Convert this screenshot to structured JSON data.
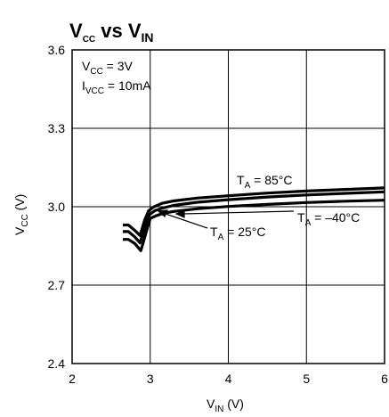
{
  "chart_data": {
    "type": "line",
    "title": {
      "main": "V",
      "main_sub": "CC",
      "mid": " vs ",
      "tail": "V",
      "tail_sub": "IN"
    },
    "xlabel": {
      "main": "V",
      "sub": "IN",
      "unit": " (V)"
    },
    "ylabel": {
      "main": "V",
      "sub": "CC",
      "unit": " (V)"
    },
    "xlim": [
      2,
      6
    ],
    "ylim": [
      2.4,
      3.6
    ],
    "x_ticks": [
      2,
      3,
      4,
      5,
      6
    ],
    "y_ticks": [
      2.4,
      2.7,
      3.0,
      3.3,
      3.6
    ],
    "x_tick_labels": [
      "2",
      "3",
      "4",
      "5",
      "6"
    ],
    "y_tick_labels": [
      "2.4",
      "2.7",
      "3.0",
      "3.3",
      "3.6"
    ],
    "grid": true,
    "conditions": [
      {
        "main": "V",
        "sub": "CC",
        "rest": " = 3V"
      },
      {
        "main": "I",
        "sub": "VCC",
        "rest": " = 10mA"
      }
    ],
    "series": [
      {
        "name": {
          "main": "T",
          "sub": "A",
          "rest": " = 85°C"
        },
        "x": [
          2.65,
          2.72,
          2.8,
          2.87,
          2.93,
          2.98,
          3.05,
          3.15,
          3.3,
          3.6,
          4.0,
          4.5,
          5.0,
          5.5,
          6.0
        ],
        "y": [
          2.93,
          2.93,
          2.91,
          2.89,
          2.95,
          2.985,
          3.0,
          3.013,
          3.022,
          3.033,
          3.042,
          3.052,
          3.06,
          3.066,
          3.072
        ]
      },
      {
        "name": {
          "main": "T",
          "sub": "A",
          "rest": " = 25°C"
        },
        "x": [
          2.65,
          2.72,
          2.8,
          2.87,
          2.94,
          2.99,
          3.06,
          3.16,
          3.3,
          3.6,
          4.0,
          4.5,
          5.0,
          5.5,
          6.0
        ],
        "y": [
          2.905,
          2.905,
          2.885,
          2.862,
          2.93,
          2.97,
          2.985,
          2.995,
          3.005,
          3.017,
          3.027,
          3.037,
          3.045,
          3.051,
          3.057
        ]
      },
      {
        "name": {
          "main": "T",
          "sub": "A",
          "rest": " = –40°C"
        },
        "x": [
          2.65,
          2.72,
          2.8,
          2.88,
          2.95,
          3.0,
          3.07,
          3.17,
          3.3,
          3.6,
          4.0,
          4.5,
          5.0,
          5.5,
          6.0
        ],
        "y": [
          2.875,
          2.875,
          2.86,
          2.832,
          2.905,
          2.955,
          2.965,
          2.975,
          2.982,
          2.992,
          3.001,
          3.009,
          3.016,
          3.021,
          3.025
        ]
      }
    ]
  }
}
